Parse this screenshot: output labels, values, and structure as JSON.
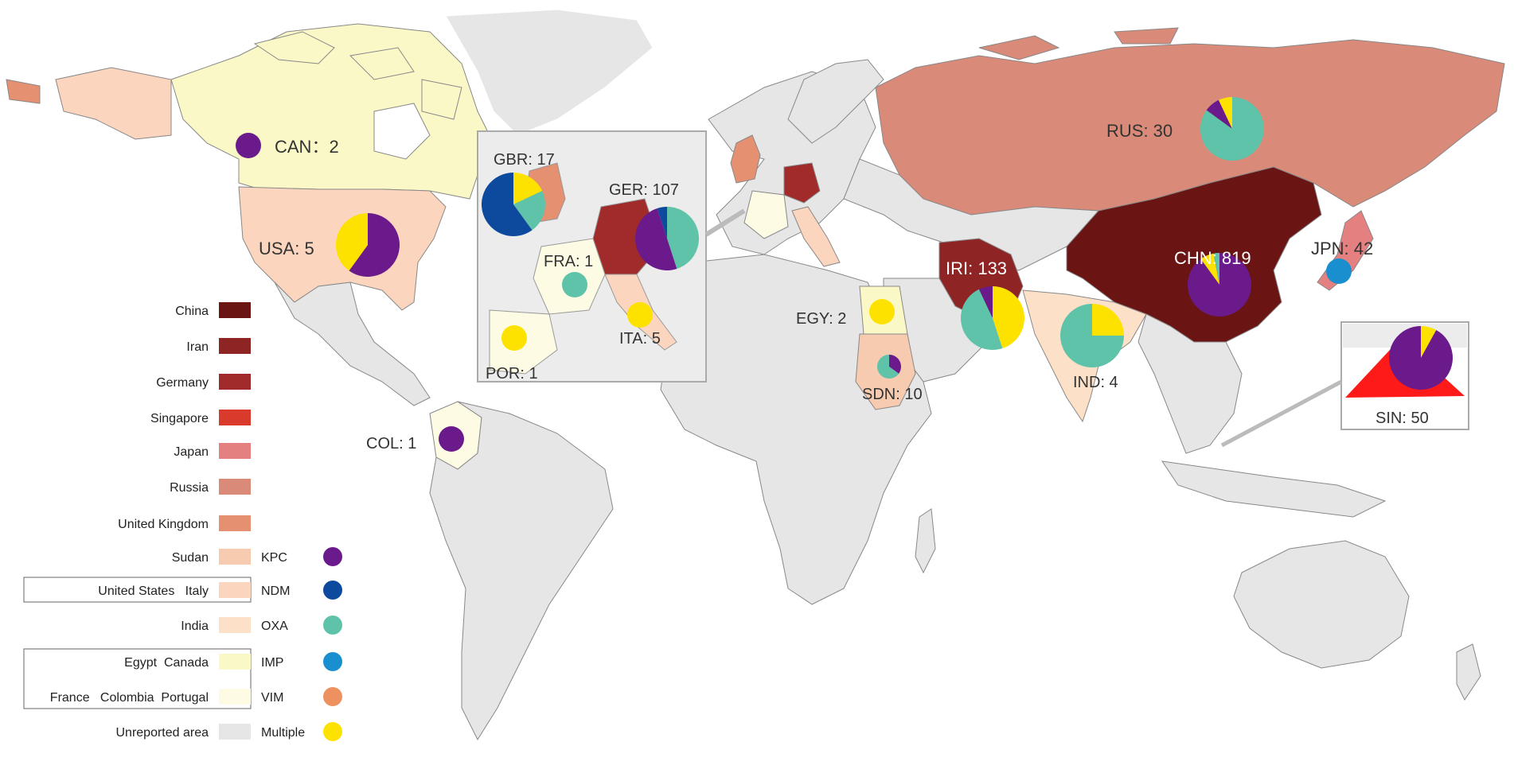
{
  "legend": {
    "countries": [
      {
        "label": "China",
        "color": "#6b1414"
      },
      {
        "label": "Iran",
        "color": "#8e2424"
      },
      {
        "label": "Germany",
        "color": "#a12a2a"
      },
      {
        "label": "Singapore",
        "color": "#d93a2b"
      },
      {
        "label": "Japan",
        "color": "#e58080"
      },
      {
        "label": "Russia",
        "color": "#d98a78"
      },
      {
        "label": "United Kingdom",
        "color": "#e59070"
      },
      {
        "label": "Sudan",
        "color": "#f6cbb0"
      },
      {
        "label": "United States   Italy",
        "color": "#fbd5bd"
      },
      {
        "label": "India",
        "color": "#fde0c8"
      },
      {
        "label": "Egypt  Canada",
        "color": "#fbf8c8"
      },
      {
        "label": "France   Colombia  Portugal",
        "color": "#fdfbe3"
      },
      {
        "label": "Unreported area",
        "color": "#e6e6e6"
      }
    ],
    "genes": [
      {
        "label": "KPC",
        "color": "#6a1a8a"
      },
      {
        "label": "NDM",
        "color": "#0d4a9e"
      },
      {
        "label": "OXA",
        "color": "#5ec3a8"
      },
      {
        "label": "IMP",
        "color": "#1a8fd0"
      },
      {
        "label": "VIM",
        "color": "#ee9160"
      },
      {
        "label": "Multiple",
        "color": "#fde200"
      }
    ]
  },
  "labels": {
    "can": "CAN：2",
    "usa": "USA: 5",
    "gbr": "GBR: 17",
    "ger": "GER: 107",
    "fra": "FRA: 1",
    "ita": "ITA: 5",
    "por": "POR: 1",
    "col": "COL: 1",
    "rus": "RUS: 30",
    "chn": "CHN: 819",
    "jpn": "JPN: 42",
    "iri": "IRI: 133",
    "egy": "EGY: 2",
    "sdn": "SDN: 10",
    "ind": "IND: 4",
    "sin": "SIN: 50"
  },
  "pies": {
    "usa": [
      {
        "gene": "KPC",
        "value": 0.6
      },
      {
        "gene": "Multiple",
        "value": 0.4
      }
    ],
    "gbr": [
      {
        "gene": "Multiple",
        "value": 0.18
      },
      {
        "gene": "OXA",
        "value": 0.22
      },
      {
        "gene": "NDM",
        "value": 0.6
      }
    ],
    "ger": [
      {
        "gene": "OXA",
        "value": 0.45
      },
      {
        "gene": "KPC",
        "value": 0.5
      },
      {
        "gene": "NDM",
        "value": 0.05
      }
    ],
    "rus": [
      {
        "gene": "OXA",
        "value": 0.85
      },
      {
        "gene": "KPC",
        "value": 0.08
      },
      {
        "gene": "Multiple",
        "value": 0.07
      }
    ],
    "chn": [
      {
        "gene": "KPC",
        "value": 0.9
      },
      {
        "gene": "Multiple",
        "value": 0.07
      },
      {
        "gene": "OXA",
        "value": 0.03
      }
    ],
    "iri": [
      {
        "gene": "Multiple",
        "value": 0.45
      },
      {
        "gene": "OXA",
        "value": 0.48
      },
      {
        "gene": "KPC",
        "value": 0.07
      }
    ],
    "ind": [
      {
        "gene": "Multiple",
        "value": 0.25
      },
      {
        "gene": "OXA",
        "value": 0.75
      }
    ],
    "sdn": [
      {
        "gene": "KPC",
        "value": 0.35
      },
      {
        "gene": "OXA",
        "value": 0.65
      }
    ],
    "sin": [
      {
        "gene": "Multiple",
        "value": 0.08
      },
      {
        "gene": "KPC",
        "value": 0.92
      }
    ]
  },
  "single_markers": {
    "can": "KPC",
    "fra": "OXA",
    "ita": "Multiple",
    "por": "Multiple",
    "col": "KPC",
    "egy": "Multiple",
    "jpn": "IMP"
  }
}
